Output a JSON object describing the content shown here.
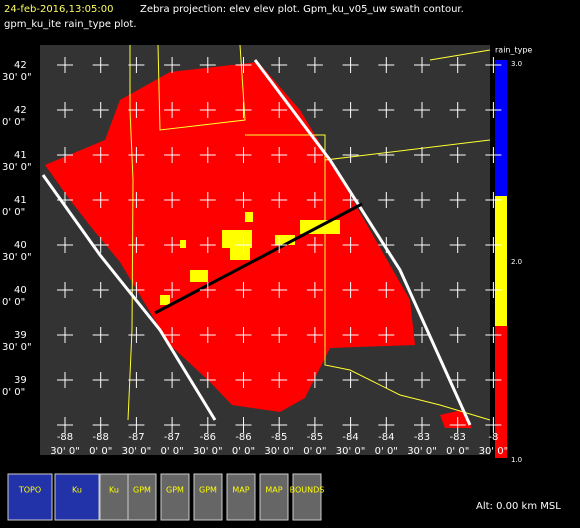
{
  "header": {
    "timestamp": "24-feb-2016,13:05:00",
    "line1": "Zebra projection: elev elev  plot.  Gpm_ku_v05_uw swath contour.",
    "line2": "gpm_ku_ite rain_type  plot."
  },
  "y_labels": [
    {
      "deg": "42",
      "min": "30' 0\""
    },
    {
      "deg": "42",
      "min": "0' 0\""
    },
    {
      "deg": "41",
      "min": "30' 0\""
    },
    {
      "deg": "41",
      "min": "0' 0\""
    },
    {
      "deg": "40",
      "min": "30' 0\""
    },
    {
      "deg": "40",
      "min": "0' 0\""
    },
    {
      "deg": "39",
      "min": "30' 0\""
    },
    {
      "deg": "39",
      "min": "0' 0\""
    }
  ],
  "x_labels": [
    {
      "deg": "-88",
      "min": "30' 0\""
    },
    {
      "deg": "-88",
      "min": "0' 0\""
    },
    {
      "deg": "-87",
      "min": "30' 0\""
    },
    {
      "deg": "-87",
      "min": "0' 0\""
    },
    {
      "deg": "-86",
      "min": "30' 0\""
    },
    {
      "deg": "-86",
      "min": "0' 0\""
    },
    {
      "deg": "-85",
      "min": "30' 0\""
    },
    {
      "deg": "-85",
      "min": "0' 0\""
    },
    {
      "deg": "-84",
      "min": "30' 0\""
    },
    {
      "deg": "-84",
      "min": "0' 0\""
    },
    {
      "deg": "-83",
      "min": "30' 0\""
    },
    {
      "deg": "-83",
      "min": "0' 0\""
    },
    {
      "deg": "-8",
      "min": "30' 0\""
    }
  ],
  "colorbar": {
    "title": "rain_type",
    "labels": [
      "3.0",
      "2.0",
      "1.0"
    ]
  },
  "toolbar": [
    "TOPO",
    "Ku",
    "Ku",
    "GPM",
    "GPM",
    "GPM",
    "MAP",
    "MAP",
    "BOUNDS"
  ],
  "status": "Alt: 0.00 km MSL"
}
